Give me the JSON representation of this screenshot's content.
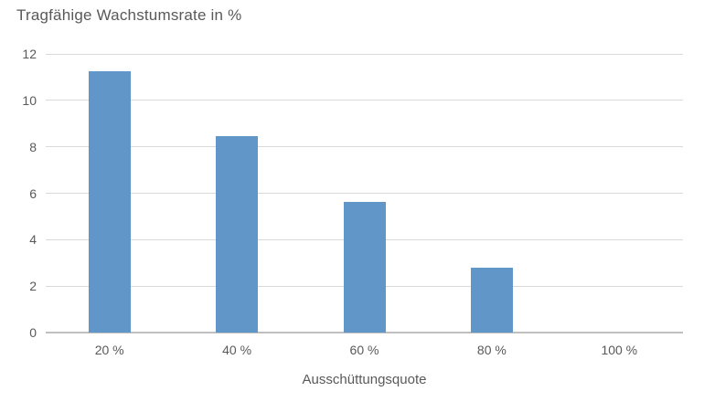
{
  "chart_data": {
    "type": "bar",
    "title": "Tragfähige Wachstumsrate in %",
    "xlabel": "Ausschüttungsquote",
    "ylabel": "",
    "categories": [
      "20 %",
      "40 %",
      "60 %",
      "80 %",
      "100 %"
    ],
    "values": [
      11.25,
      8.44,
      5.63,
      2.81,
      0
    ],
    "ylim": [
      0,
      12
    ],
    "yticks": [
      0,
      2,
      4,
      6,
      8,
      10,
      12
    ],
    "grid": true,
    "legend": false,
    "colors": {
      "bar": "#6097c8",
      "text": "#595959",
      "gridline": "#d9d9d9",
      "axis_line": "#bfbfbf",
      "background": "#ffffff"
    }
  }
}
